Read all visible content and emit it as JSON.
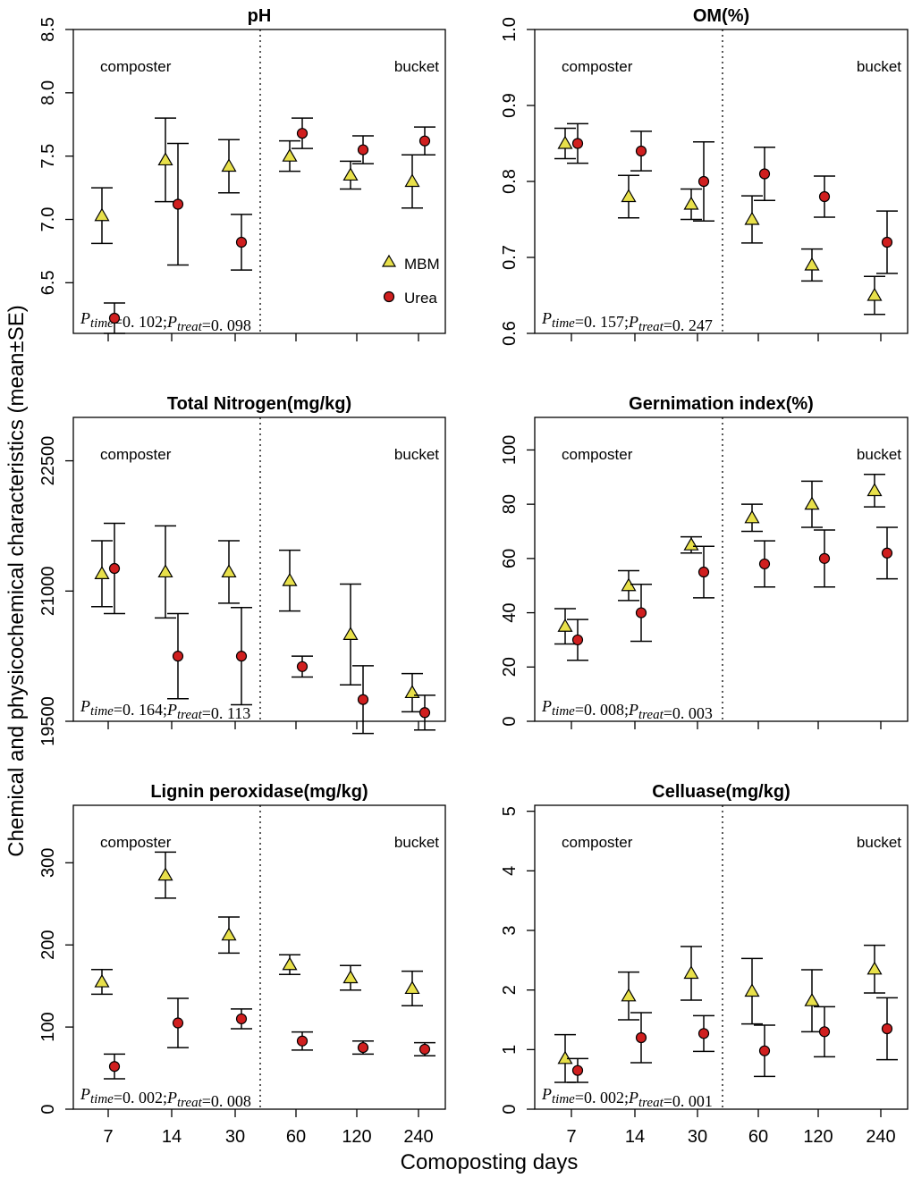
{
  "chart_data": [
    {
      "type": "scatter",
      "title": "pH",
      "x_categories": [
        "7",
        "14",
        "30",
        "60",
        "120",
        "240"
      ],
      "ylim": [
        6.1,
        8.5
      ],
      "yticks": [
        "6.5",
        "7.0",
        "7.5",
        "8.0",
        "8.5"
      ],
      "ytick_values": [
        6.5,
        7.0,
        7.5,
        8.0,
        8.5
      ],
      "left_label": "composter",
      "right_label": "bucket",
      "ptime": "0. 102",
      "ptreat": "0. 098",
      "series": [
        {
          "name": "MBM",
          "values": [
            7.03,
            7.47,
            7.42,
            7.5,
            7.35,
            7.3
          ],
          "errors": [
            0.22,
            0.33,
            0.21,
            0.12,
            0.11,
            0.21
          ]
        },
        {
          "name": "Urea",
          "values": [
            6.22,
            7.12,
            6.82,
            7.68,
            7.55,
            7.62
          ],
          "errors": [
            0.12,
            0.48,
            0.22,
            0.12,
            0.11,
            0.11
          ]
        }
      ]
    },
    {
      "type": "scatter",
      "title": "OM(%)",
      "x_categories": [
        "7",
        "14",
        "30",
        "60",
        "120",
        "240"
      ],
      "ylim": [
        0.6,
        1.0
      ],
      "yticks": [
        "0.6",
        "0.7",
        "0.8",
        "0.9",
        "1.0"
      ],
      "ytick_values": [
        0.6,
        0.7,
        0.8,
        0.9,
        1.0
      ],
      "left_label": "composter",
      "right_label": "bucket",
      "ptime": "0. 157",
      "ptreat": "0. 247",
      "series": [
        {
          "name": "MBM",
          "values": [
            0.85,
            0.78,
            0.77,
            0.75,
            0.69,
            0.65
          ],
          "errors": [
            0.02,
            0.028,
            0.02,
            0.031,
            0.021,
            0.025
          ]
        },
        {
          "name": "Urea",
          "values": [
            0.85,
            0.84,
            0.8,
            0.81,
            0.78,
            0.72
          ],
          "errors": [
            0.026,
            0.026,
            0.052,
            0.035,
            0.027,
            0.041
          ]
        }
      ]
    },
    {
      "type": "scatter",
      "title": "Total Nitrogen(mg/kg)",
      "x_categories": [
        "7",
        "14",
        "30",
        "60",
        "120",
        "240"
      ],
      "ylim": [
        19500,
        23000
      ],
      "yticks": [
        "19500",
        "21000",
        "22500"
      ],
      "ytick_values": [
        19500,
        21000,
        22500
      ],
      "left_label": "composter",
      "right_label": "bucket",
      "ptime": "0. 164",
      "ptreat": "0. 113",
      "series": [
        {
          "name": "MBM",
          "values": [
            21200,
            21220,
            21220,
            21120,
            20500,
            19830
          ],
          "errors": [
            380,
            530,
            360,
            350,
            580,
            220
          ]
        },
        {
          "name": "Urea",
          "values": [
            21260,
            20250,
            20250,
            20130,
            19750,
            19600
          ],
          "errors": [
            520,
            490,
            560,
            120,
            390,
            200
          ]
        }
      ]
    },
    {
      "type": "scatter",
      "title": "Gernimation index(%)",
      "x_categories": [
        "7",
        "14",
        "30",
        "60",
        "120",
        "240"
      ],
      "ylim": [
        0,
        112
      ],
      "yticks": [
        "0",
        "20",
        "40",
        "60",
        "80",
        "100"
      ],
      "ytick_values": [
        0,
        20,
        40,
        60,
        80,
        100
      ],
      "left_label": "composter",
      "right_label": "bucket",
      "ptime": "0. 008",
      "ptreat": "0. 003",
      "series": [
        {
          "name": "MBM",
          "values": [
            35,
            50,
            65,
            75,
            80,
            85
          ],
          "errors": [
            6.5,
            5.5,
            3,
            5,
            8.5,
            6
          ]
        },
        {
          "name": "Urea",
          "values": [
            30,
            40,
            55,
            58,
            60,
            62
          ],
          "errors": [
            7.5,
            10.5,
            9.5,
            8.5,
            10.5,
            9.5
          ]
        }
      ]
    },
    {
      "type": "scatter",
      "title": "Lignin peroxidase(mg/kg)",
      "x_categories": [
        "7",
        "14",
        "30",
        "60",
        "120",
        "240"
      ],
      "ylim": [
        0,
        370
      ],
      "yticks": [
        "0",
        "100",
        "200",
        "300"
      ],
      "ytick_values": [
        0,
        100,
        200,
        300
      ],
      "left_label": "composter",
      "right_label": "bucket",
      "ptime": "0. 002",
      "ptreat": "0. 008",
      "series": [
        {
          "name": "MBM",
          "values": [
            155,
            285,
            212,
            176,
            160,
            147
          ],
          "errors": [
            15,
            28,
            22,
            12,
            15,
            21
          ]
        },
        {
          "name": "Urea",
          "values": [
            52,
            105,
            110,
            83,
            75,
            73
          ],
          "errors": [
            15,
            30,
            12,
            11,
            8,
            8
          ]
        }
      ]
    },
    {
      "type": "scatter",
      "title": "Celluase(mg/kg)",
      "x_categories": [
        "7",
        "14",
        "30",
        "60",
        "120",
        "240"
      ],
      "ylim": [
        0,
        5.1
      ],
      "yticks": [
        "0",
        "1",
        "2",
        "3",
        "4",
        "5"
      ],
      "ytick_values": [
        0,
        1,
        2,
        3,
        4,
        5
      ],
      "left_label": "composter",
      "right_label": "bucket",
      "ptime": "0. 002",
      "ptreat": "0. 001",
      "series": [
        {
          "name": "MBM",
          "values": [
            0.85,
            1.9,
            2.28,
            1.98,
            1.82,
            2.35
          ],
          "errors": [
            0.4,
            0.4,
            0.45,
            0.55,
            0.52,
            0.4
          ]
        },
        {
          "name": "Urea",
          "values": [
            0.65,
            1.2,
            1.27,
            0.98,
            1.3,
            1.35
          ],
          "errors": [
            0.2,
            0.42,
            0.3,
            0.43,
            0.42,
            0.52
          ]
        }
      ]
    }
  ],
  "legend": {
    "mbm": "MBM",
    "urea": "Urea"
  },
  "ylabel": "Chemical and physicochemical characteristics (mean±SE)",
  "xlabel": "Comoposting days",
  "p_labels": {
    "time": "time",
    "treat": "treat"
  },
  "colors": {
    "mbm_fill": "#e8e04a",
    "urea_fill": "#d01f1f",
    "stroke": "#000000"
  }
}
